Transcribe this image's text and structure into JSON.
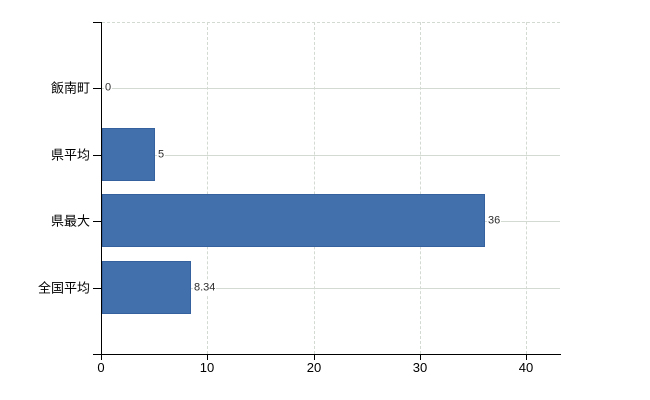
{
  "chart_data": {
    "type": "bar",
    "orientation": "horizontal",
    "title": "",
    "categories": [
      "飯南町",
      "県平均",
      "県最大",
      "全国平均"
    ],
    "values": [
      0,
      5,
      36,
      8.34
    ],
    "value_labels": [
      "0",
      "5",
      "36",
      "8.34"
    ],
    "x_ticks": [
      0,
      10,
      20,
      30,
      40
    ],
    "x_tick_labels": [
      "0",
      "10",
      "20",
      "30",
      "40"
    ],
    "xlim": [
      0,
      43.2
    ],
    "grid": {
      "vertical": "dashed",
      "horizontal": "solid",
      "top_border": "dashed"
    },
    "legend": "none",
    "colors": {
      "bar_fill": "#4170ad",
      "bar_border": "#35619f",
      "gridline": "#d3dad2",
      "axis": "#000000",
      "category_label": "#000000",
      "tick_label": "#000000",
      "value_label": "#2e2e2e",
      "background": "#ffffff"
    }
  }
}
